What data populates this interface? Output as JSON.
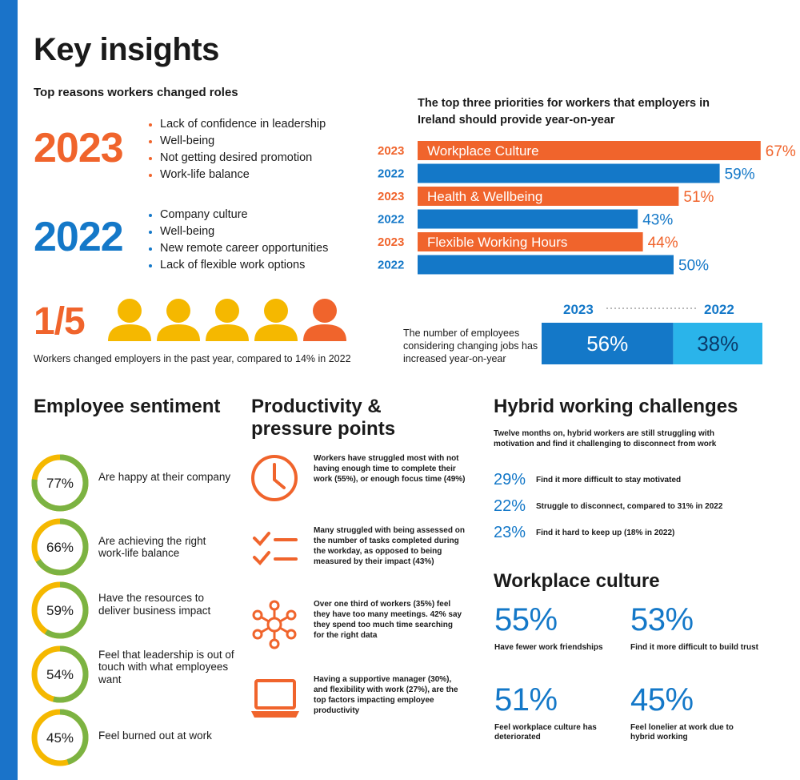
{
  "title": "Key insights",
  "reasons": {
    "subtitle": "Top reasons workers changed roles",
    "y2023": {
      "year": "2023",
      "items": [
        "Lack of confidence in leadership",
        "Well-being",
        "Not getting desired promotion",
        "Work-life balance"
      ]
    },
    "y2022": {
      "year": "2022",
      "items": [
        "Company culture",
        "Well-being",
        "New remote career opportunities",
        "Lack of flexible work options"
      ]
    }
  },
  "changers": {
    "fraction": "1/5",
    "note": "Workers changed employers in the past year, compared to 14% in 2022",
    "people_total": 5,
    "people_highlighted": 1
  },
  "colors": {
    "orange": "#f0642c",
    "blue": "#1478c8",
    "light_blue": "#2ab4ea",
    "yellow": "#f5b800",
    "green": "#7cb342"
  },
  "chart_data": [
    {
      "type": "bar",
      "orientation": "horizontal",
      "title": "The top three priorities for workers that employers in Ireland should provide year-on-year",
      "categories": [
        "Workplace Culture",
        "Health & Wellbeing",
        "Flexible Working Hours"
      ],
      "series": [
        {
          "name": "2023",
          "values": [
            67,
            51,
            44
          ],
          "labels": [
            "67%",
            "51%",
            "44%"
          ]
        },
        {
          "name": "2022",
          "values": [
            59,
            43,
            50
          ],
          "labels": [
            "59%",
            "43%",
            "50%"
          ]
        }
      ],
      "xlim": [
        0,
        100
      ]
    },
    {
      "type": "bar",
      "orientation": "horizontal-stacked",
      "note": "The number of employees considering changing jobs has increased year-on-year",
      "series": [
        {
          "name": "2023",
          "values": [
            56
          ],
          "label": "56%"
        },
        {
          "name": "2022",
          "values": [
            38
          ],
          "label": "38%"
        }
      ]
    }
  ],
  "sentiment": {
    "heading": "Employee sentiment",
    "items": [
      {
        "pct": 77,
        "label": "77%",
        "text": "Are happy at their company"
      },
      {
        "pct": 66,
        "label": "66%",
        "text": "Are achieving the right work-life balance"
      },
      {
        "pct": 59,
        "label": "59%",
        "text": "Have the resources to deliver business impact"
      },
      {
        "pct": 54,
        "label": "54%",
        "text": "Feel that leadership is out of touch with what employees want"
      },
      {
        "pct": 45,
        "label": "45%",
        "text": "Feel burned out at work"
      }
    ]
  },
  "productivity": {
    "heading": "Productivity & pressure points",
    "items": [
      {
        "icon": "clock-icon",
        "text": "Workers have struggled most with not having enough time to complete their work (55%), or enough focus time (49%)"
      },
      {
        "icon": "checklist-icon",
        "text": "Many struggled with being assessed on the number of tasks completed during the workday, as opposed to being measured by their impact (43%)"
      },
      {
        "icon": "network-icon",
        "text": "Over one third of workers (35%) feel they have too many meetings. 42% say they spend too much time searching for the right data"
      },
      {
        "icon": "laptop-icon",
        "text": "Having a supportive manager (30%), and flexibility with work (27%), are the top factors impacting employee productivity"
      }
    ]
  },
  "hybrid": {
    "heading": "Hybrid working challenges",
    "intro": "Twelve months on, hybrid workers are still struggling with motivation and find it challenging to disconnect from work",
    "items": [
      {
        "pct": "29%",
        "text": "Find it more difficult to stay motivated"
      },
      {
        "pct": "22%",
        "text": "Struggle to disconnect, compared to 31% in 2022"
      },
      {
        "pct": "23%",
        "text": "Find it hard to keep up (18% in 2022)"
      }
    ]
  },
  "culture": {
    "heading": "Workplace culture",
    "items": [
      {
        "pct": "55%",
        "text": "Have fewer work friendships"
      },
      {
        "pct": "53%",
        "text": "Find it more difficult to build trust"
      },
      {
        "pct": "51%",
        "text": "Feel workplace culture has deteriorated"
      },
      {
        "pct": "45%",
        "text": "Feel lonelier at work due to hybrid working"
      }
    ]
  }
}
